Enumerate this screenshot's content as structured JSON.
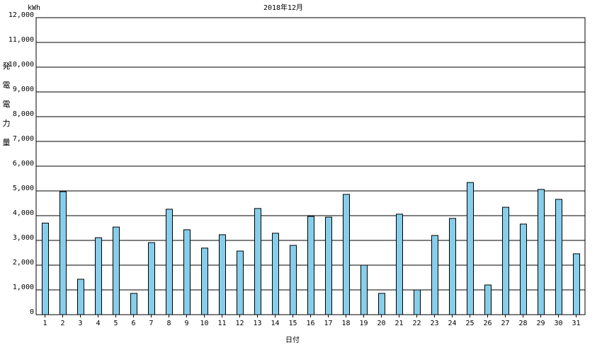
{
  "chart_data": {
    "type": "bar",
    "title": "2018年12月",
    "unit": "kWh",
    "ylabel": "発電電力量",
    "xlabel": "日付",
    "categories": [
      "1",
      "2",
      "3",
      "4",
      "5",
      "6",
      "7",
      "8",
      "9",
      "10",
      "11",
      "12",
      "13",
      "14",
      "15",
      "16",
      "17",
      "18",
      "19",
      "20",
      "21",
      "22",
      "23",
      "24",
      "25",
      "26",
      "27",
      "28",
      "29",
      "30",
      "31"
    ],
    "values": [
      3700,
      4970,
      1430,
      3110,
      3540,
      860,
      2910,
      4260,
      3430,
      2690,
      3230,
      2570,
      4290,
      3290,
      2800,
      3970,
      3940,
      4860,
      2000,
      860,
      4060,
      1000,
      3200,
      3890,
      5340,
      1200,
      4340,
      3660,
      5060,
      4660,
      2460
    ],
    "color": "#87ceeb",
    "ylim": [
      0,
      12000
    ],
    "yticks": [
      0,
      {
        "value": 1000,
        "label": "1,000"
      },
      {
        "value": 2000,
        "label": "2,000"
      },
      {
        "value": 3000,
        "label": "3,000"
      },
      {
        "value": 4000,
        "label": "4,000"
      },
      {
        "value": 5000,
        "label": "5,000"
      },
      {
        "value": 6000,
        "label": "6,000"
      },
      {
        "value": 7000,
        "label": "7,000"
      },
      {
        "value": 8000,
        "label": "8,000"
      },
      {
        "value": 9000,
        "label": "9,000"
      },
      {
        "value": 10000,
        "label": "10,000"
      },
      {
        "value": 11000,
        "label": "11,000"
      },
      {
        "value": 12000,
        "label": "12,000"
      }
    ],
    "grid": true
  }
}
